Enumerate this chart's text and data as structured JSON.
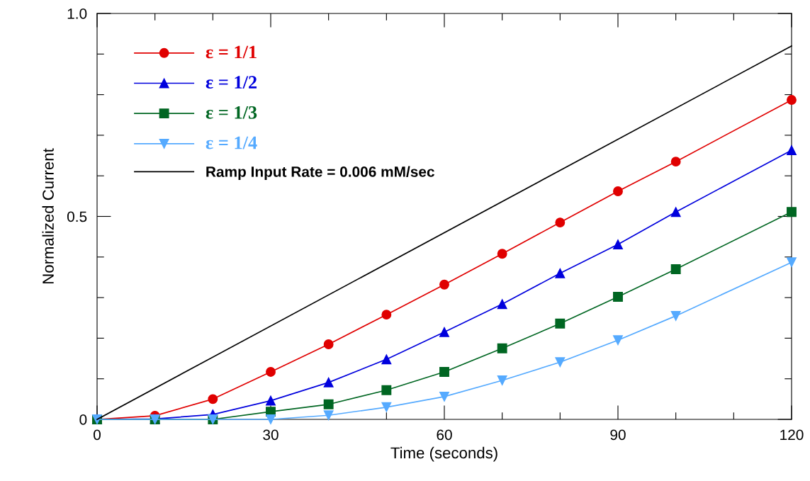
{
  "chart_data": {
    "type": "line",
    "xlabel": "Time (seconds)",
    "ylabel": "Normalized Current",
    "x": [
      0,
      10,
      20,
      30,
      40,
      50,
      60,
      70,
      80,
      90,
      100,
      120
    ],
    "series": [
      {
        "name": "ε = 1/1",
        "color": "#e00000",
        "marker": "circle",
        "values": [
          0,
          0.009,
          0.05,
          0.117,
          0.185,
          0.258,
          0.332,
          0.408,
          0.485,
          0.562,
          0.635,
          0.787
        ]
      },
      {
        "name": "ε = 1/2",
        "color": "#0000dd",
        "marker": "triangle",
        "values": [
          0,
          0.001,
          0.012,
          0.046,
          0.091,
          0.148,
          0.215,
          0.284,
          0.36,
          0.431,
          0.511,
          0.663
        ]
      },
      {
        "name": "ε = 1/3",
        "color": "#006622",
        "marker": "square",
        "values": [
          0,
          0,
          0,
          0.019,
          0.037,
          0.072,
          0.117,
          0.175,
          0.236,
          0.302,
          0.37,
          0.511
        ]
      },
      {
        "name": "ε = 1/4",
        "color": "#55aaff",
        "marker": "triangle_down",
        "values": [
          0,
          0,
          0,
          0,
          0.01,
          0.03,
          0.056,
          0.096,
          0.141,
          0.195,
          0.255,
          0.387
        ]
      },
      {
        "name": "Ramp Input Rate = 0.006 mM/sec",
        "color": "#000000",
        "marker": "none",
        "x": [
          0,
          120
        ],
        "values": [
          0,
          0.92
        ]
      }
    ],
    "xlim": [
      0,
      120
    ],
    "ylim": [
      0,
      1.0
    ],
    "xticks": [
      0,
      {
        "value": 10,
        "label": null
      },
      {
        "value": 20,
        "label": null
      },
      30,
      {
        "value": 40,
        "label": null
      },
      {
        "value": 50,
        "label": null
      },
      60,
      {
        "value": 70,
        "label": null
      },
      {
        "value": 80,
        "label": null
      },
      90,
      {
        "value": 100,
        "label": null
      },
      {
        "value": 110,
        "label": null
      },
      120
    ],
    "yticks": [
      0,
      {
        "value": 0.1,
        "label": null
      },
      {
        "value": 0.2,
        "label": null
      },
      {
        "value": 0.3,
        "label": null
      },
      {
        "value": 0.4,
        "label": null
      },
      0.5,
      {
        "value": 0.6,
        "label": null
      },
      {
        "value": 0.7,
        "label": null
      },
      {
        "value": 0.8,
        "label": null
      },
      {
        "value": 0.9,
        "label": null
      },
      {
        "value": 1.0,
        "label": "1.0"
      }
    ],
    "grid": false,
    "legend": "top left"
  }
}
